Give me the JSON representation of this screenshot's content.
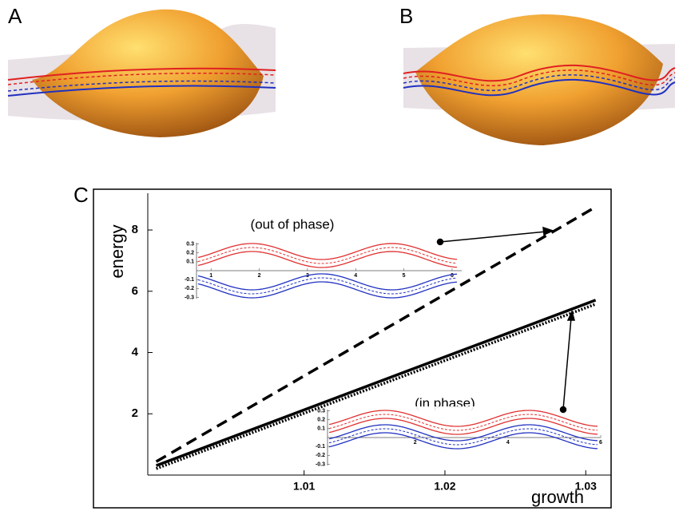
{
  "panel_labels": {
    "a": "A",
    "b": "B",
    "c": "C"
  },
  "chart_data": {
    "type": "line",
    "x_label": "growth",
    "y_label": "energy",
    "x": [
      0.9995,
      1.0307
    ],
    "series": [
      {
        "color": "#000000",
        "dash": "dashed",
        "values": [
          0.44,
          8.75
        ]
      },
      {
        "color": "#000000",
        "dash": "solid",
        "values": [
          0.31,
          5.71
        ]
      },
      {
        "color": "#000000",
        "dash": "dotted",
        "values": [
          0.21,
          5.58
        ]
      }
    ],
    "xlim": [
      0.9989,
      1.0318
    ],
    "ylim": [
      0,
      9.2
    ],
    "xticks": [
      1.01,
      1.02,
      1.03
    ],
    "yticks": [
      2,
      4,
      6,
      8
    ],
    "annotations": [
      "(out of phase)",
      "(in phase)"
    ]
  },
  "insets": [
    {
      "xlim": [
        0.4,
        6.2
      ],
      "ylim": [
        -0.35,
        0.35
      ],
      "xticks": [
        1,
        2,
        3,
        4,
        5,
        6
      ],
      "yticks": [
        0.3,
        0.2,
        0.1,
        -0.1,
        -0.2,
        -0.3
      ]
    },
    {
      "xlim": [
        -0.2,
        6.0
      ],
      "ylim": [
        -0.35,
        0.35
      ],
      "xticks": [
        2,
        4,
        6
      ],
      "yticks": [
        0.3,
        0.2,
        0.1,
        -0.1,
        -0.2,
        -0.3
      ]
    }
  ]
}
